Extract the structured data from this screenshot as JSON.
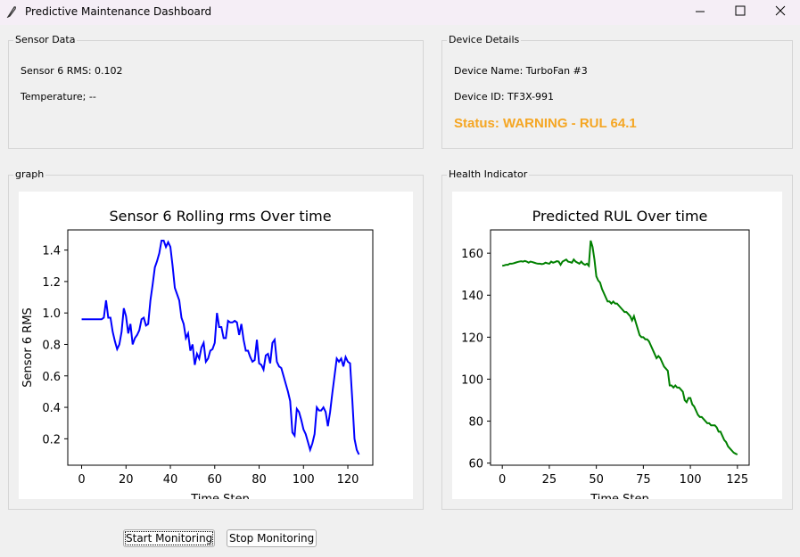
{
  "window": {
    "title": "Predictive Maintenance Dashboard"
  },
  "sensor_panel": {
    "title": "Sensor Data",
    "rms": "Sensor 6 RMS: 0.102",
    "temperature": "Temperature; --"
  },
  "device_panel": {
    "title": "Device Details",
    "name": "Device Name: TurboFan #3",
    "id": "Device ID: TF3X-991",
    "status": "Status: WARNING - RUL 64.1"
  },
  "graph_panel": {
    "title": "graph"
  },
  "health_panel": {
    "title": "Health Indicator"
  },
  "buttons": [
    "Start Monitoring",
    "Stop Monitoring"
  ],
  "chart_data": [
    {
      "type": "line",
      "title": "Sensor 6 Rolling rms Over time",
      "xlabel": "Time Step",
      "ylabel": "Sensor 6 RMS",
      "color": "#0000ff",
      "x": [
        0,
        1,
        2,
        3,
        4,
        5,
        6,
        7,
        8,
        9,
        10,
        11,
        12,
        13,
        14,
        15,
        16,
        17,
        18,
        19,
        20,
        21,
        22,
        23,
        24,
        25,
        26,
        27,
        28,
        29,
        30,
        31,
        32,
        33,
        34,
        35,
        36,
        37,
        38,
        39,
        40,
        41,
        42,
        43,
        44,
        45,
        46,
        47,
        48,
        49,
        50,
        51,
        52,
        53,
        54,
        55,
        56,
        57,
        58,
        59,
        60,
        61,
        62,
        63,
        64,
        65,
        66,
        67,
        68,
        69,
        70,
        71,
        72,
        73,
        74,
        75,
        76,
        77,
        78,
        79,
        80,
        81,
        82,
        83,
        84,
        85,
        86,
        87,
        88,
        89,
        90,
        91,
        92,
        93,
        94,
        95,
        96,
        97,
        98,
        99,
        100,
        101,
        102,
        103,
        104,
        105,
        106,
        107,
        108,
        109,
        110,
        111,
        112,
        113,
        114,
        115,
        116,
        117,
        118,
        119,
        120,
        121,
        122,
        123,
        124,
        125
      ],
      "values": [
        0.96,
        0.96,
        0.96,
        0.96,
        0.96,
        0.96,
        0.96,
        0.96,
        0.96,
        0.96,
        0.97,
        1.08,
        0.97,
        0.97,
        0.88,
        0.82,
        0.77,
        0.8,
        0.88,
        1.03,
        0.98,
        0.87,
        0.93,
        0.8,
        0.84,
        0.86,
        0.89,
        0.96,
        0.97,
        0.92,
        0.93,
        1.08,
        1.18,
        1.29,
        1.33,
        1.38,
        1.46,
        1.46,
        1.42,
        1.45,
        1.42,
        1.3,
        1.16,
        1.12,
        1.08,
        0.97,
        0.93,
        0.84,
        0.87,
        0.76,
        0.8,
        0.67,
        0.74,
        0.71,
        0.78,
        0.81,
        0.69,
        0.71,
        0.76,
        0.77,
        0.81,
        1.0,
        0.91,
        0.91,
        0.84,
        0.84,
        0.95,
        0.94,
        0.94,
        0.95,
        0.94,
        0.86,
        0.93,
        0.83,
        0.76,
        0.76,
        0.72,
        0.69,
        0.7,
        0.83,
        0.68,
        0.67,
        0.64,
        0.73,
        0.74,
        0.68,
        0.81,
        0.83,
        0.69,
        0.66,
        0.65,
        0.6,
        0.55,
        0.5,
        0.44,
        0.24,
        0.22,
        0.39,
        0.37,
        0.32,
        0.26,
        0.23,
        0.18,
        0.13,
        0.17,
        0.23,
        0.4,
        0.38,
        0.38,
        0.4,
        0.37,
        0.28,
        0.37,
        0.49,
        0.6,
        0.71,
        0.69,
        0.71,
        0.66,
        0.72,
        0.69,
        0.68,
        0.45,
        0.2,
        0.13,
        0.1
      ],
      "xlim": [
        -6.25,
        131.25
      ],
      "xticks": [
        0,
        20,
        40,
        60,
        80,
        100,
        120
      ],
      "ylim": [
        0.032,
        1.528
      ],
      "yticks": [
        0.2,
        0.4,
        0.6,
        0.8,
        {
          "value": 1,
          "label": "1.0"
        },
        1.2,
        1.4
      ]
    },
    {
      "type": "line",
      "title": "Predicted RUL Over time",
      "xlabel": "Time Step",
      "color": "#008000",
      "x": [
        0,
        1,
        2,
        3,
        4,
        5,
        6,
        7,
        8,
        9,
        10,
        11,
        12,
        13,
        14,
        15,
        16,
        17,
        18,
        19,
        20,
        21,
        22,
        23,
        24,
        25,
        26,
        27,
        28,
        29,
        30,
        31,
        32,
        33,
        34,
        35,
        36,
        37,
        38,
        39,
        40,
        41,
        42,
        43,
        44,
        45,
        46,
        47,
        48,
        49,
        50,
        51,
        52,
        53,
        54,
        55,
        56,
        57,
        58,
        59,
        60,
        61,
        62,
        63,
        64,
        65,
        66,
        67,
        68,
        69,
        70,
        71,
        72,
        73,
        74,
        75,
        76,
        77,
        78,
        79,
        80,
        81,
        82,
        83,
        84,
        85,
        86,
        87,
        88,
        89,
        90,
        91,
        92,
        93,
        94,
        95,
        96,
        97,
        98,
        99,
        100,
        101,
        102,
        103,
        104,
        105,
        106,
        107,
        108,
        109,
        110,
        111,
        112,
        113,
        114,
        115,
        116,
        117,
        118,
        119,
        120,
        121,
        122,
        123,
        124,
        125
      ],
      "values": [
        154,
        154.2,
        154.5,
        154.5,
        155,
        155,
        155.2,
        155.5,
        155.8,
        156,
        156.2,
        156,
        156.3,
        156,
        155.5,
        156,
        155.8,
        155.5,
        155.2,
        155,
        155,
        154.8,
        155,
        155.5,
        155.2,
        155,
        156,
        155.5,
        155.8,
        156.2,
        156,
        154.5,
        156,
        156.5,
        157,
        156,
        155.8,
        155.5,
        157,
        156,
        155.5,
        155,
        156,
        155,
        154.5,
        155,
        154,
        166,
        163,
        157,
        149,
        147,
        146,
        143,
        141,
        139,
        137,
        137,
        136,
        137,
        136,
        136,
        135,
        134,
        133,
        132,
        132,
        131,
        130,
        128,
        130,
        127,
        124,
        121,
        120,
        120,
        119,
        119,
        118,
        116,
        114,
        112,
        110,
        111,
        110,
        108,
        106,
        105,
        104,
        97,
        97,
        96,
        97,
        96,
        96,
        95,
        94,
        90,
        89,
        91,
        91,
        88,
        87,
        85,
        83,
        82,
        82,
        81,
        80,
        79,
        79,
        78,
        78,
        78,
        77,
        75,
        75,
        73,
        71,
        70,
        68,
        67,
        66,
        65,
        64.5,
        64.1
      ],
      "xlim": [
        -6.25,
        131.25
      ],
      "xticks": [
        0,
        25,
        50,
        75,
        100,
        125
      ],
      "ylim": [
        59,
        171.1
      ],
      "yticks": [
        60,
        80,
        100,
        120,
        140,
        160
      ]
    }
  ]
}
